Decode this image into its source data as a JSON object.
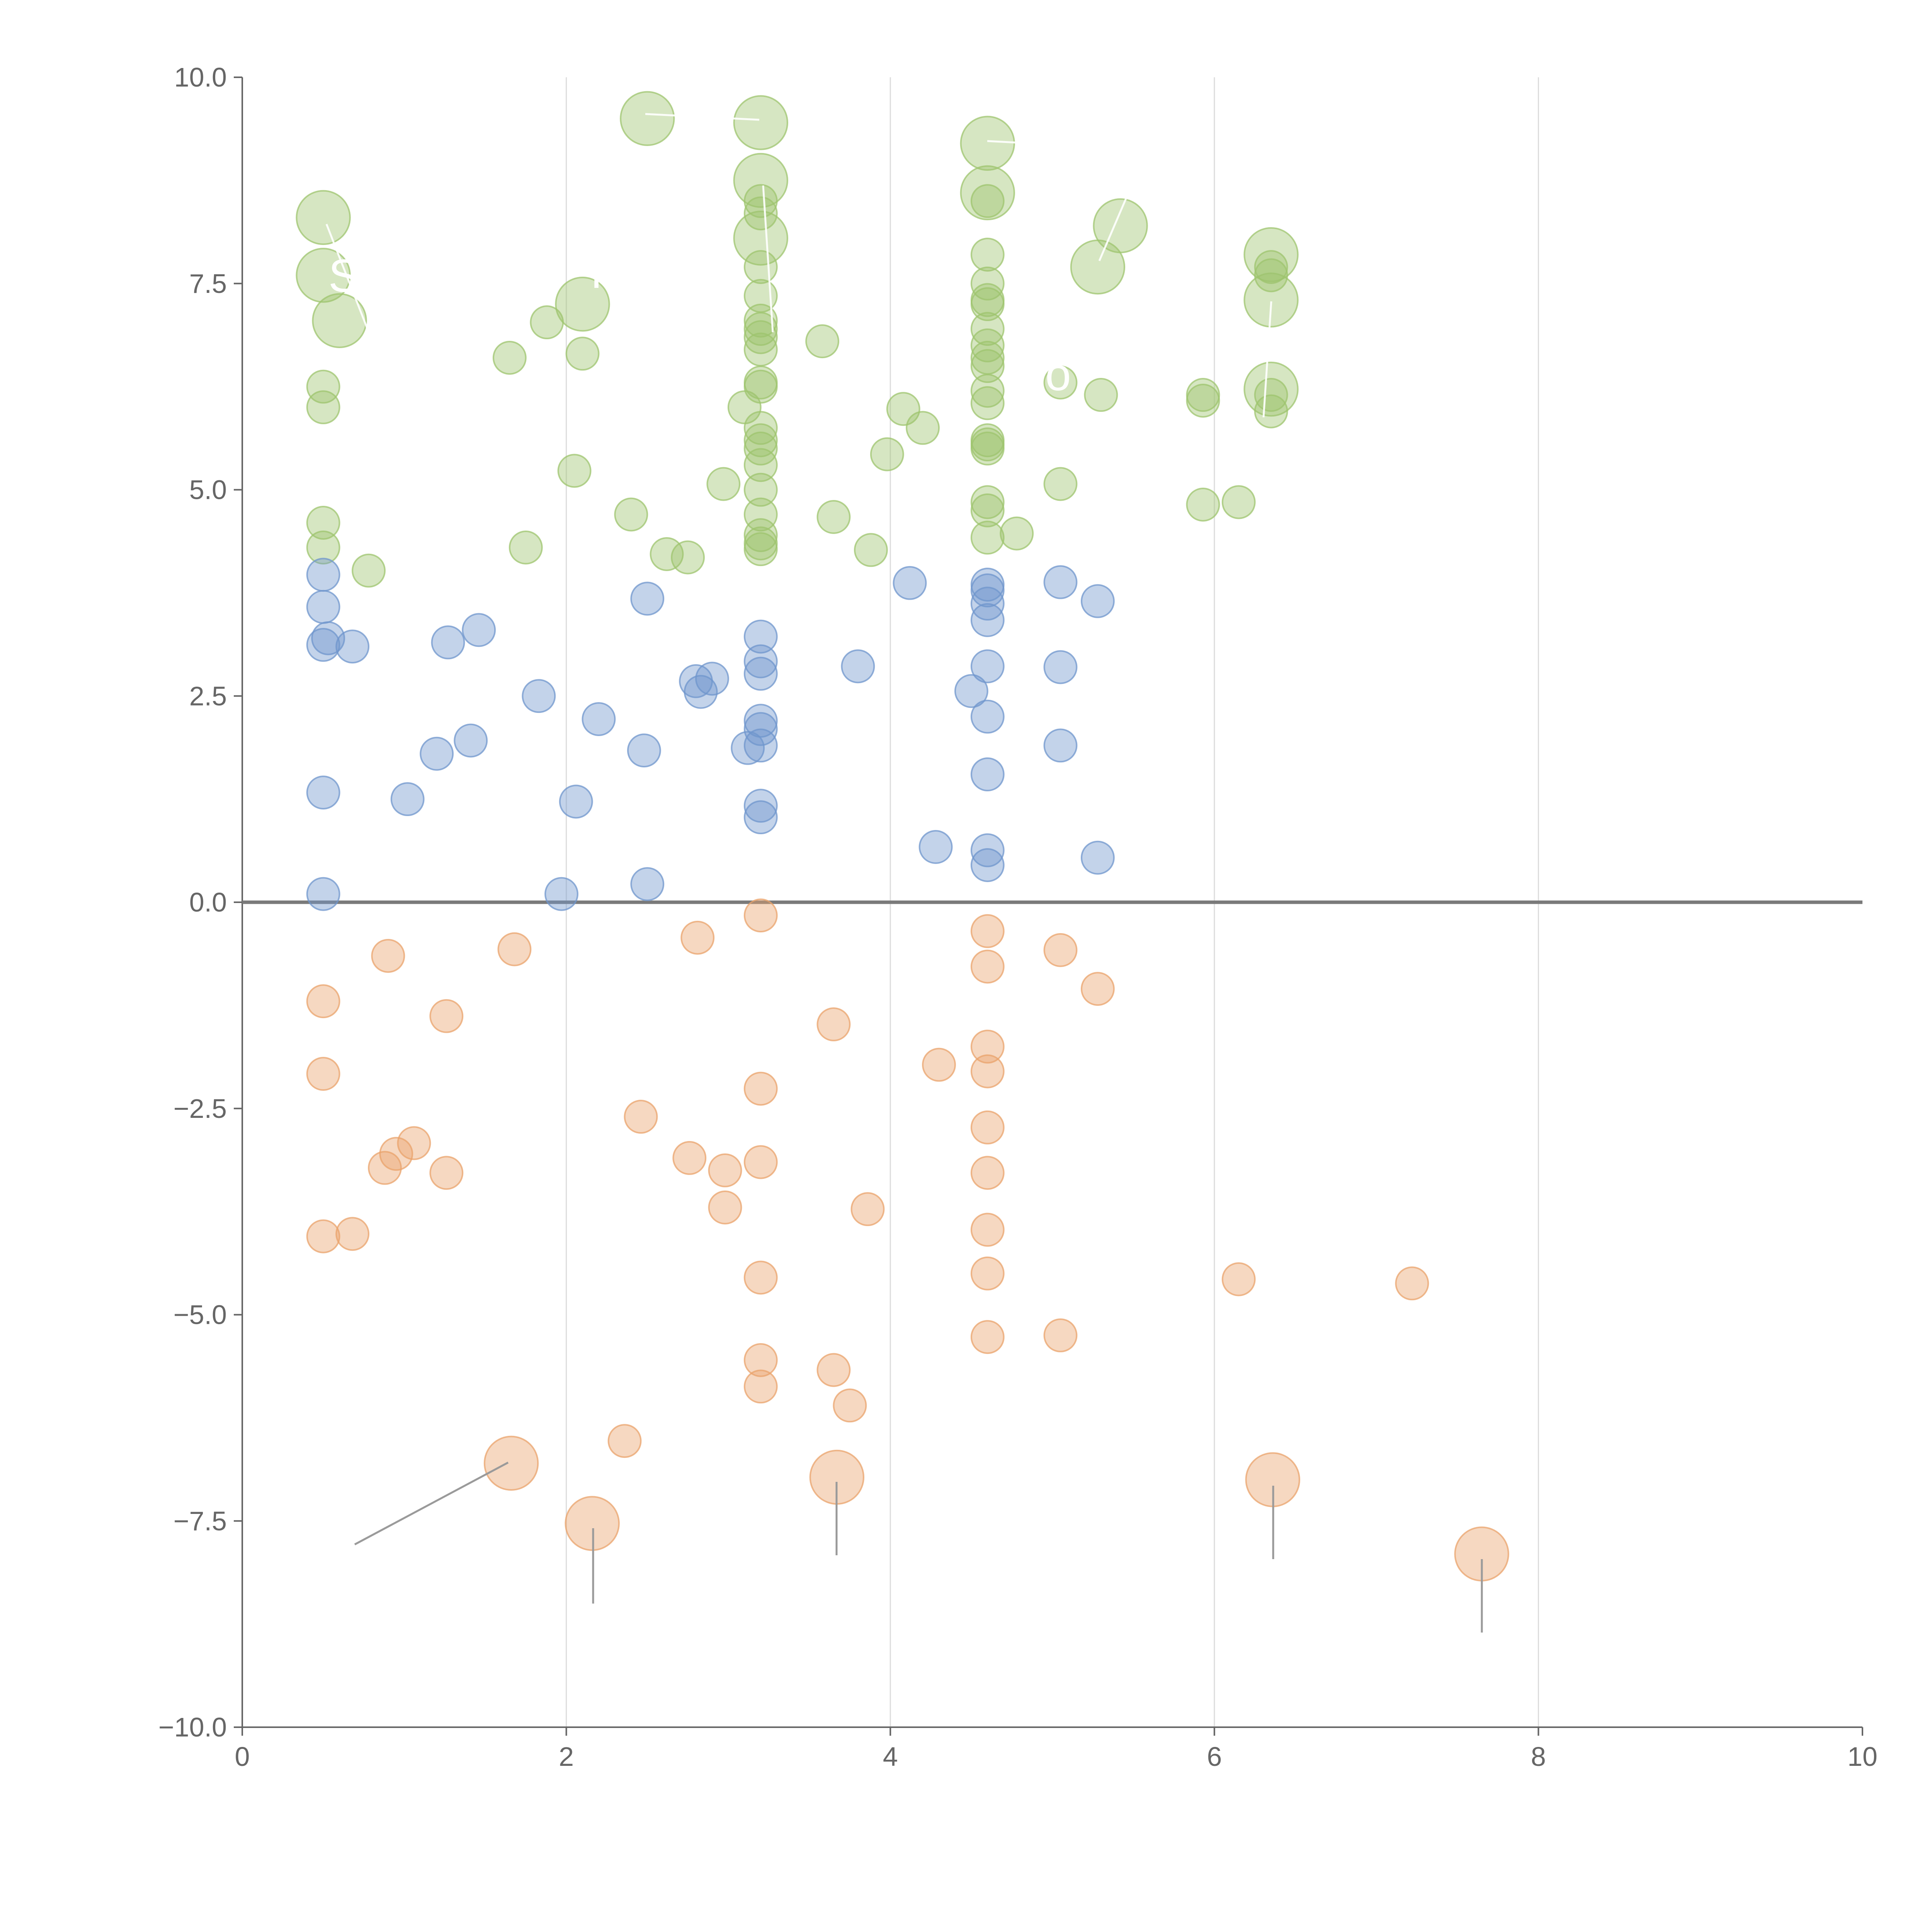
{
  "chart_data": {
    "type": "scatter",
    "title": "",
    "xlabel": "",
    "ylabel": "",
    "xlim": [
      0,
      10
    ],
    "ylim": [
      -10,
      10
    ],
    "grid": "vertical",
    "xticks": [
      "0",
      "2",
      "4",
      "6",
      "8",
      "10"
    ],
    "yticks": [
      "10.0",
      "7.5",
      "5.0",
      "2.5",
      "0.0",
      "−2.5",
      "−5.0",
      "−7.5",
      "−10.0"
    ],
    "colors": {
      "green": "#9ec46e",
      "blue": "#6f95cc",
      "orange": "#e9a36b",
      "axis": "#666666",
      "grid": "#dcdcdc",
      "zero_line": "#7a7a7a",
      "leader": "#9a9a9a"
    },
    "annotations": [
      "S",
      "r",
      "o"
    ],
    "series": [
      {
        "name": "green",
        "color": "#9ec46e",
        "points": [
          {
            "x": 0.5,
            "y": 8.3,
            "s": 2
          },
          {
            "x": 0.5,
            "y": 7.6,
            "s": 2
          },
          {
            "x": 0.6,
            "y": 7.05,
            "s": 2
          },
          {
            "x": 0.5,
            "y": 6.25,
            "s": 1
          },
          {
            "x": 0.5,
            "y": 6.0,
            "s": 1
          },
          {
            "x": 0.5,
            "y": 4.6,
            "s": 1
          },
          {
            "x": 0.5,
            "y": 4.3,
            "s": 1
          },
          {
            "x": 0.78,
            "y": 4.02,
            "s": 1
          },
          {
            "x": 1.65,
            "y": 6.6,
            "s": 1
          },
          {
            "x": 1.75,
            "y": 4.3,
            "s": 1
          },
          {
            "x": 1.88,
            "y": 7.03,
            "s": 1
          },
          {
            "x": 2.05,
            "y": 5.23,
            "s": 1
          },
          {
            "x": 2.1,
            "y": 6.65,
            "s": 1
          },
          {
            "x": 2.1,
            "y": 7.25,
            "s": 2
          },
          {
            "x": 2.4,
            "y": 4.7,
            "s": 1
          },
          {
            "x": 2.5,
            "y": 9.5,
            "s": 2
          },
          {
            "x": 2.62,
            "y": 4.22,
            "s": 1
          },
          {
            "x": 2.75,
            "y": 4.18,
            "s": 1
          },
          {
            "x": 2.97,
            "y": 5.07,
            "s": 1
          },
          {
            "x": 3.1,
            "y": 6.0,
            "s": 1
          },
          {
            "x": 3.2,
            "y": 9.45,
            "s": 2
          },
          {
            "x": 3.2,
            "y": 8.75,
            "s": 2
          },
          {
            "x": 3.2,
            "y": 8.05,
            "s": 2
          },
          {
            "x": 3.2,
            "y": 8.5,
            "s": 1
          },
          {
            "x": 3.2,
            "y": 8.35,
            "s": 1
          },
          {
            "x": 3.2,
            "y": 7.7,
            "s": 1
          },
          {
            "x": 3.2,
            "y": 7.35,
            "s": 1
          },
          {
            "x": 3.2,
            "y": 7.05,
            "s": 1
          },
          {
            "x": 3.2,
            "y": 6.95,
            "s": 1
          },
          {
            "x": 3.2,
            "y": 6.85,
            "s": 1
          },
          {
            "x": 3.2,
            "y": 6.7,
            "s": 1
          },
          {
            "x": 3.2,
            "y": 6.3,
            "s": 1
          },
          {
            "x": 3.2,
            "y": 6.25,
            "s": 1
          },
          {
            "x": 3.2,
            "y": 5.75,
            "s": 1
          },
          {
            "x": 3.2,
            "y": 5.6,
            "s": 1
          },
          {
            "x": 3.2,
            "y": 5.5,
            "s": 1
          },
          {
            "x": 3.2,
            "y": 5.3,
            "s": 1
          },
          {
            "x": 3.2,
            "y": 5.0,
            "s": 1
          },
          {
            "x": 3.2,
            "y": 4.7,
            "s": 1
          },
          {
            "x": 3.2,
            "y": 4.45,
            "s": 1
          },
          {
            "x": 3.2,
            "y": 4.35,
            "s": 1
          },
          {
            "x": 3.2,
            "y": 4.28,
            "s": 1
          },
          {
            "x": 3.58,
            "y": 6.8,
            "s": 1
          },
          {
            "x": 3.65,
            "y": 4.67,
            "s": 1
          },
          {
            "x": 3.88,
            "y": 4.27,
            "s": 1
          },
          {
            "x": 3.98,
            "y": 5.43,
            "s": 1
          },
          {
            "x": 4.08,
            "y": 5.98,
            "s": 1
          },
          {
            "x": 4.2,
            "y": 5.75,
            "s": 1
          },
          {
            "x": 4.6,
            "y": 9.2,
            "s": 2
          },
          {
            "x": 4.6,
            "y": 8.6,
            "s": 2
          },
          {
            "x": 4.6,
            "y": 8.5,
            "s": 1
          },
          {
            "x": 4.6,
            "y": 7.85,
            "s": 1
          },
          {
            "x": 4.6,
            "y": 7.5,
            "s": 1
          },
          {
            "x": 4.6,
            "y": 7.3,
            "s": 1
          },
          {
            "x": 4.6,
            "y": 7.25,
            "s": 1
          },
          {
            "x": 4.6,
            "y": 6.95,
            "s": 1
          },
          {
            "x": 4.6,
            "y": 6.75,
            "s": 1
          },
          {
            "x": 4.6,
            "y": 6.6,
            "s": 1
          },
          {
            "x": 4.6,
            "y": 6.5,
            "s": 1
          },
          {
            "x": 4.6,
            "y": 6.2,
            "s": 1
          },
          {
            "x": 4.6,
            "y": 6.05,
            "s": 1
          },
          {
            "x": 4.6,
            "y": 5.6,
            "s": 1
          },
          {
            "x": 4.6,
            "y": 5.55,
            "s": 1
          },
          {
            "x": 4.6,
            "y": 5.5,
            "s": 1
          },
          {
            "x": 4.6,
            "y": 4.85,
            "s": 1
          },
          {
            "x": 4.6,
            "y": 4.75,
            "s": 1
          },
          {
            "x": 4.6,
            "y": 4.42,
            "s": 1
          },
          {
            "x": 4.78,
            "y": 4.47,
            "s": 1
          },
          {
            "x": 5.05,
            "y": 6.3,
            "s": 1
          },
          {
            "x": 5.05,
            "y": 5.07,
            "s": 1
          },
          {
            "x": 5.28,
            "y": 7.7,
            "s": 2
          },
          {
            "x": 5.3,
            "y": 6.15,
            "s": 1
          },
          {
            "x": 5.42,
            "y": 8.2,
            "s": 2
          },
          {
            "x": 5.93,
            "y": 6.15,
            "s": 1
          },
          {
            "x": 5.93,
            "y": 6.08,
            "s": 1
          },
          {
            "x": 5.93,
            "y": 4.82,
            "s": 1
          },
          {
            "x": 6.15,
            "y": 4.85,
            "s": 1
          },
          {
            "x": 6.35,
            "y": 7.85,
            "s": 2
          },
          {
            "x": 6.35,
            "y": 7.3,
            "s": 2
          },
          {
            "x": 6.35,
            "y": 6.22,
            "s": 2
          },
          {
            "x": 6.35,
            "y": 7.7,
            "s": 1
          },
          {
            "x": 6.35,
            "y": 7.6,
            "s": 1
          },
          {
            "x": 6.35,
            "y": 6.15,
            "s": 1
          },
          {
            "x": 6.35,
            "y": 5.95,
            "s": 1
          }
        ]
      },
      {
        "name": "blue",
        "color": "#6f95cc",
        "points": [
          {
            "x": 0.5,
            "y": 3.97,
            "s": 1
          },
          {
            "x": 0.5,
            "y": 3.58,
            "s": 1
          },
          {
            "x": 0.5,
            "y": 3.12,
            "s": 1
          },
          {
            "x": 0.53,
            "y": 3.2,
            "s": 1
          },
          {
            "x": 0.68,
            "y": 3.1,
            "s": 1
          },
          {
            "x": 0.5,
            "y": 1.33,
            "s": 1
          },
          {
            "x": 0.5,
            "y": 0.1,
            "s": 1
          },
          {
            "x": 1.02,
            "y": 1.25,
            "s": 1
          },
          {
            "x": 1.2,
            "y": 1.8,
            "s": 1
          },
          {
            "x": 1.27,
            "y": 3.15,
            "s": 1
          },
          {
            "x": 1.41,
            "y": 1.96,
            "s": 1
          },
          {
            "x": 1.46,
            "y": 3.3,
            "s": 1
          },
          {
            "x": 1.83,
            "y": 2.5,
            "s": 1
          },
          {
            "x": 1.97,
            "y": 0.1,
            "s": 1
          },
          {
            "x": 2.06,
            "y": 1.22,
            "s": 1
          },
          {
            "x": 2.2,
            "y": 2.22,
            "s": 1
          },
          {
            "x": 2.48,
            "y": 1.84,
            "s": 1
          },
          {
            "x": 2.5,
            "y": 0.22,
            "s": 1
          },
          {
            "x": 2.5,
            "y": 3.68,
            "s": 1
          },
          {
            "x": 2.8,
            "y": 2.68,
            "s": 1
          },
          {
            "x": 2.83,
            "y": 2.55,
            "s": 1
          },
          {
            "x": 2.9,
            "y": 2.71,
            "s": 1
          },
          {
            "x": 3.12,
            "y": 1.87,
            "s": 1
          },
          {
            "x": 3.2,
            "y": 3.22,
            "s": 1
          },
          {
            "x": 3.2,
            "y": 2.92,
            "s": 1
          },
          {
            "x": 3.2,
            "y": 2.77,
            "s": 1
          },
          {
            "x": 3.2,
            "y": 2.2,
            "s": 1
          },
          {
            "x": 3.2,
            "y": 2.1,
            "s": 1
          },
          {
            "x": 3.2,
            "y": 1.9,
            "s": 1
          },
          {
            "x": 3.2,
            "y": 1.17,
            "s": 1
          },
          {
            "x": 3.2,
            "y": 1.03,
            "s": 1
          },
          {
            "x": 3.8,
            "y": 2.86,
            "s": 1
          },
          {
            "x": 4.12,
            "y": 3.87,
            "s": 1
          },
          {
            "x": 4.28,
            "y": 0.67,
            "s": 1
          },
          {
            "x": 4.5,
            "y": 2.56,
            "s": 1
          },
          {
            "x": 4.6,
            "y": 3.85,
            "s": 1
          },
          {
            "x": 4.6,
            "y": 3.78,
            "s": 1
          },
          {
            "x": 4.6,
            "y": 3.62,
            "s": 1
          },
          {
            "x": 4.6,
            "y": 3.42,
            "s": 1
          },
          {
            "x": 4.6,
            "y": 2.86,
            "s": 1
          },
          {
            "x": 4.6,
            "y": 2.25,
            "s": 1
          },
          {
            "x": 4.6,
            "y": 1.55,
            "s": 1
          },
          {
            "x": 4.6,
            "y": 0.63,
            "s": 1
          },
          {
            "x": 4.6,
            "y": 0.45,
            "s": 1
          },
          {
            "x": 5.05,
            "y": 3.88,
            "s": 1
          },
          {
            "x": 5.05,
            "y": 2.85,
            "s": 1
          },
          {
            "x": 5.05,
            "y": 1.9,
            "s": 1
          },
          {
            "x": 5.28,
            "y": 3.65,
            "s": 1
          },
          {
            "x": 5.28,
            "y": 0.54,
            "s": 1
          }
        ]
      },
      {
        "name": "orange",
        "color": "#e9a36b",
        "points": [
          {
            "x": 0.5,
            "y": -1.2,
            "s": 1
          },
          {
            "x": 0.5,
            "y": -2.08,
            "s": 1
          },
          {
            "x": 0.5,
            "y": -4.05,
            "s": 1
          },
          {
            "x": 0.68,
            "y": -4.02,
            "s": 1
          },
          {
            "x": 0.88,
            "y": -3.22,
            "s": 1
          },
          {
            "x": 0.9,
            "y": -0.65,
            "s": 1
          },
          {
            "x": 0.95,
            "y": -3.05,
            "s": 1
          },
          {
            "x": 1.06,
            "y": -2.92,
            "s": 1
          },
          {
            "x": 1.26,
            "y": -1.38,
            "s": 1
          },
          {
            "x": 1.26,
            "y": -3.28,
            "s": 1
          },
          {
            "x": 1.68,
            "y": -0.57,
            "s": 1
          },
          {
            "x": 1.66,
            "y": -6.8,
            "s": 2
          },
          {
            "x": 2.16,
            "y": -7.53,
            "s": 2
          },
          {
            "x": 2.36,
            "y": -6.53,
            "s": 1
          },
          {
            "x": 2.46,
            "y": -2.6,
            "s": 1
          },
          {
            "x": 2.76,
            "y": -3.1,
            "s": 1
          },
          {
            "x": 2.81,
            "y": -0.43,
            "s": 1
          },
          {
            "x": 2.98,
            "y": -3.25,
            "s": 1
          },
          {
            "x": 2.98,
            "y": -3.7,
            "s": 1
          },
          {
            "x": 3.2,
            "y": -0.16,
            "s": 1
          },
          {
            "x": 3.2,
            "y": -2.26,
            "s": 1
          },
          {
            "x": 3.2,
            "y": -3.15,
            "s": 1
          },
          {
            "x": 3.2,
            "y": -4.55,
            "s": 1
          },
          {
            "x": 3.2,
            "y": -5.55,
            "s": 1
          },
          {
            "x": 3.2,
            "y": -5.87,
            "s": 1
          },
          {
            "x": 3.65,
            "y": -1.48,
            "s": 1
          },
          {
            "x": 3.65,
            "y": -5.67,
            "s": 1
          },
          {
            "x": 3.67,
            "y": -6.97,
            "s": 2
          },
          {
            "x": 3.75,
            "y": -6.1,
            "s": 1
          },
          {
            "x": 3.86,
            "y": -3.72,
            "s": 1
          },
          {
            "x": 4.3,
            "y": -1.97,
            "s": 1
          },
          {
            "x": 4.6,
            "y": -0.35,
            "s": 1
          },
          {
            "x": 4.6,
            "y": -0.78,
            "s": 1
          },
          {
            "x": 4.6,
            "y": -1.75,
            "s": 1
          },
          {
            "x": 4.6,
            "y": -2.05,
            "s": 1
          },
          {
            "x": 4.6,
            "y": -2.73,
            "s": 1
          },
          {
            "x": 4.6,
            "y": -3.28,
            "s": 1
          },
          {
            "x": 4.6,
            "y": -3.97,
            "s": 1
          },
          {
            "x": 4.6,
            "y": -4.5,
            "s": 1
          },
          {
            "x": 4.6,
            "y": -5.27,
            "s": 1
          },
          {
            "x": 5.05,
            "y": -0.58,
            "s": 1
          },
          {
            "x": 5.05,
            "y": -5.25,
            "s": 1
          },
          {
            "x": 5.28,
            "y": -1.05,
            "s": 1
          },
          {
            "x": 6.15,
            "y": -4.57,
            "s": 1
          },
          {
            "x": 6.36,
            "y": -7.0,
            "s": 2
          },
          {
            "x": 7.22,
            "y": -4.62,
            "s": 1
          },
          {
            "x": 7.65,
            "y": -7.9,
            "s": 2
          }
        ]
      }
    ],
    "bubble_sizes": {
      "1": 0.2,
      "2": 0.33
    }
  }
}
